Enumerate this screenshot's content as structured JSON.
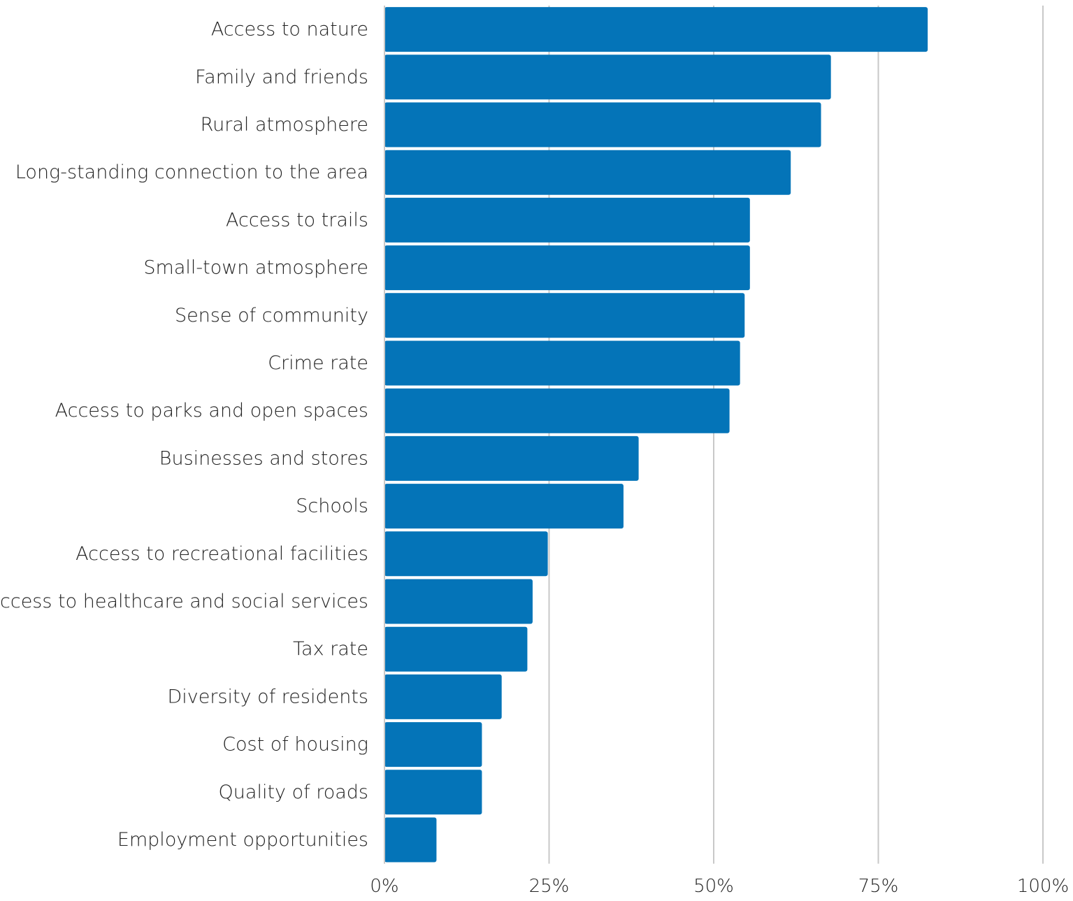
{
  "chart_data": {
    "type": "bar",
    "orientation": "horizontal",
    "title": "",
    "xlabel": "",
    "ylabel": "",
    "categories": [
      "Access to nature",
      "Family and friends",
      "Rural atmosphere",
      "Long-standing connection to the area",
      "Access to trails",
      "Small-town atmosphere",
      "Sense of community",
      "Crime rate",
      "Access to parks and open spaces",
      "Businesses and stores",
      "Schools",
      "Access to recreational facilities",
      "Access to healthcare and social services",
      "Tax rate",
      "Diversity of residents",
      "Cost of housing",
      "Quality of roads",
      "Employment opportunities"
    ],
    "values": [
      82.5,
      67.8,
      66.3,
      61.7,
      55.5,
      55.5,
      54.7,
      54.0,
      52.4,
      38.6,
      36.3,
      24.8,
      22.5,
      21.7,
      17.8,
      14.8,
      14.8,
      7.9
    ],
    "xlim": [
      0,
      100
    ],
    "x_ticks": [
      0,
      25,
      50,
      75,
      100
    ],
    "x_tick_labels": [
      "0%",
      "25%",
      "50%",
      "75%",
      "100%"
    ],
    "grid": true,
    "legend": "none",
    "bar_color": "#0474b8"
  }
}
